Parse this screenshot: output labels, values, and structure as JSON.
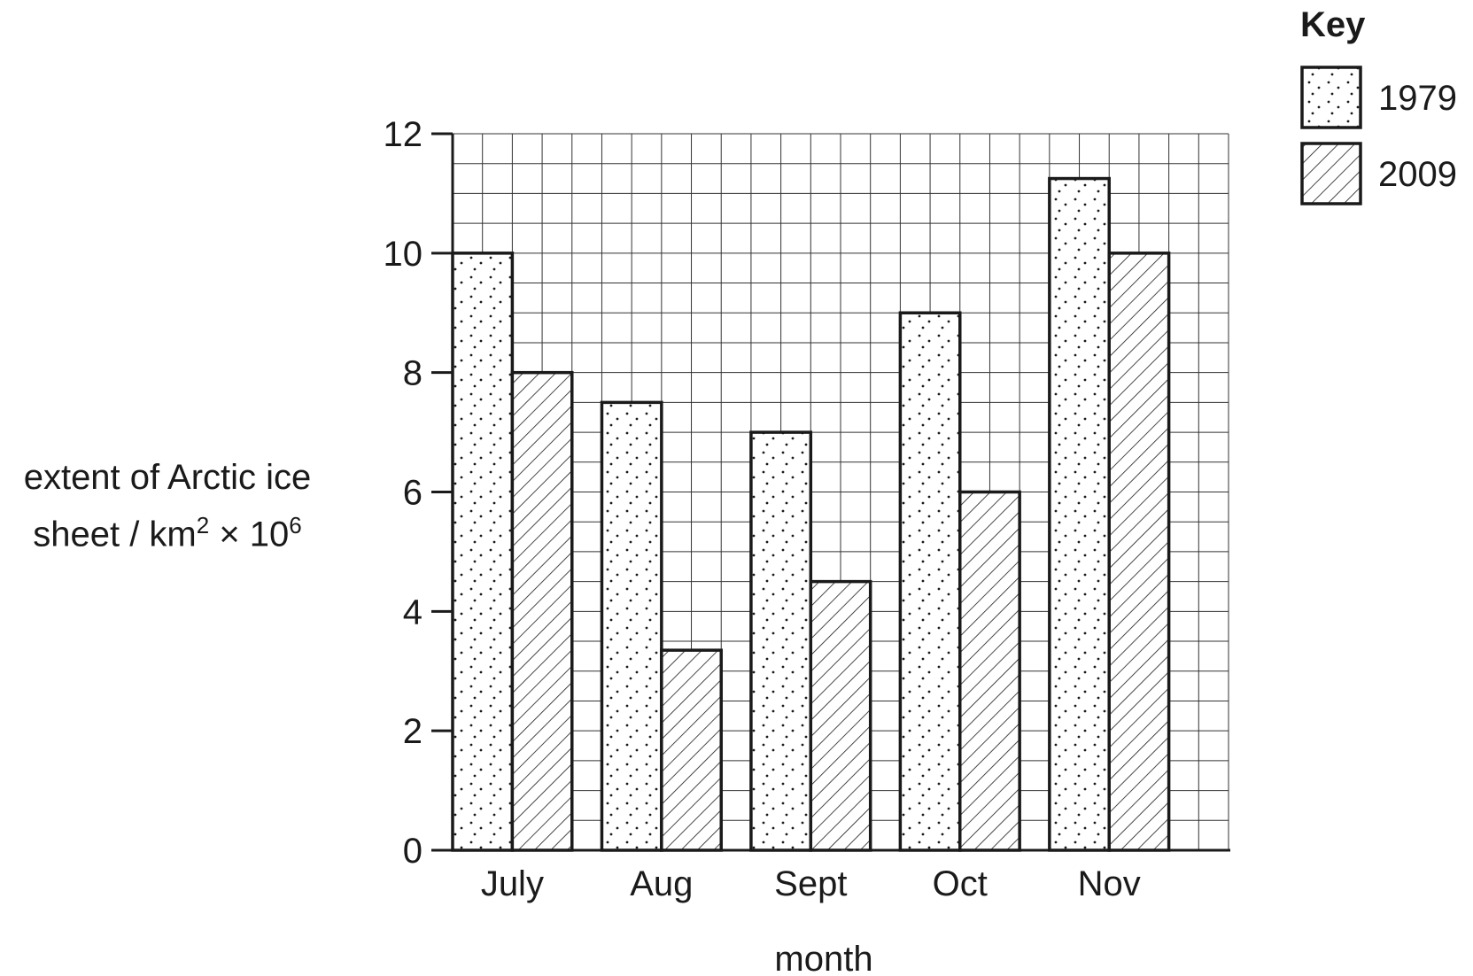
{
  "chart_data": {
    "type": "bar",
    "categories": [
      "July",
      "Aug",
      "Sept",
      "Oct",
      "Nov"
    ],
    "series": [
      {
        "name": "1979",
        "values": [
          10,
          7.5,
          7,
          9,
          11.25
        ],
        "pattern": "dots"
      },
      {
        "name": "2009",
        "values": [
          8,
          3.35,
          4.5,
          6,
          10
        ],
        "pattern": "hatch"
      }
    ],
    "xlabel": "month",
    "ylabel": {
      "part1": "extent of Arctic ice",
      "part2": "sheet / km",
      "sup1": "2",
      "part3": " × 10",
      "sup2": "6"
    },
    "ylim": [
      0,
      12
    ],
    "yticks": [
      0,
      2,
      4,
      6,
      8,
      10,
      12
    ],
    "grid": true,
    "legend": {
      "title": "Key",
      "placement": "top-right"
    }
  }
}
